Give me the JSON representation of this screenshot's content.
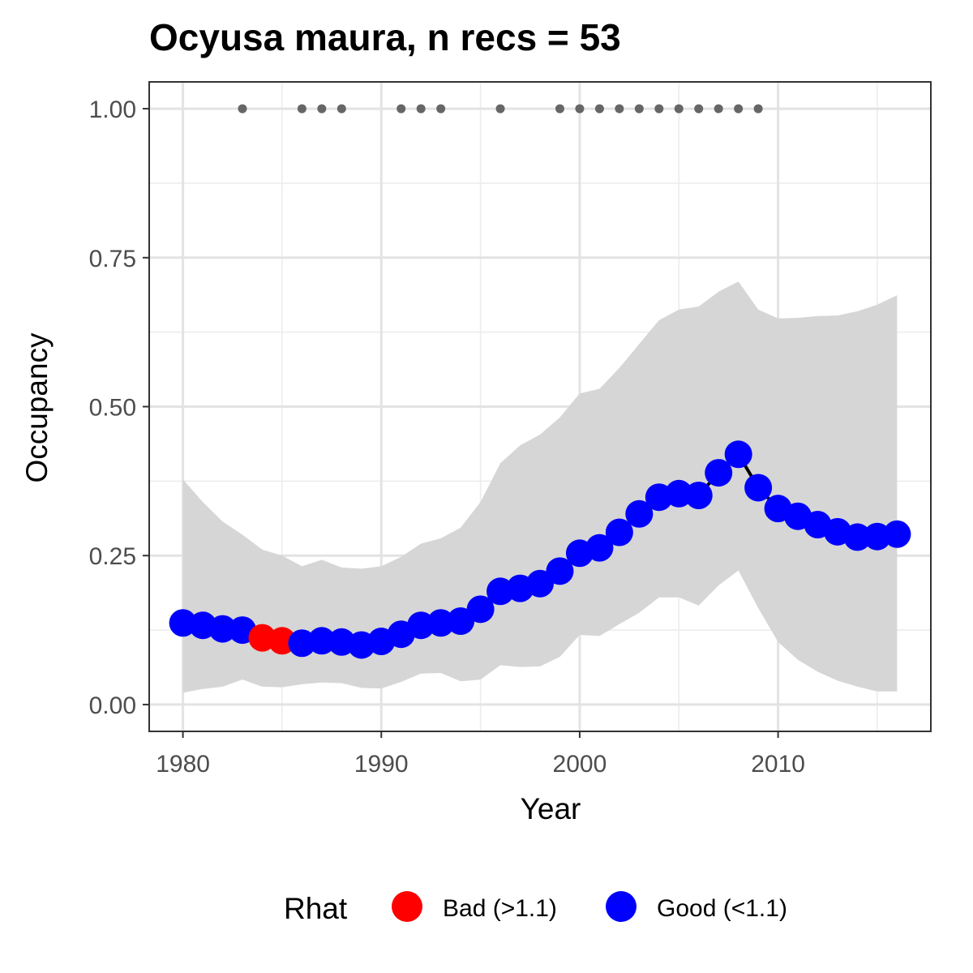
{
  "chart_data": {
    "type": "line",
    "title": "Ocyusa maura, n recs = 53",
    "xlabel": "Year",
    "ylabel": "Occupancy",
    "xlim": [
      1978.3,
      2017.7
    ],
    "ylim": [
      -0.045,
      1.045
    ],
    "x_ticks": [
      1980,
      1990,
      2000,
      2010
    ],
    "y_ticks": [
      0,
      0.25,
      0.5,
      0.75,
      1
    ],
    "y_tick_labels": [
      "0.00",
      "0.25",
      "0.50",
      "0.75",
      "1.00"
    ],
    "grid": true,
    "legend": {
      "position": "bottom",
      "title": "Rhat",
      "items": [
        {
          "label": "Bad (>1.1)",
          "color": "#ff0000"
        },
        {
          "label": "Good (<1.1)",
          "color": "#0000ff"
        }
      ]
    },
    "colors": {
      "bad": "#ff0000",
      "good": "#0000ff",
      "ribbon": "#d6d6d6",
      "records": "#666666",
      "line": "#000000"
    },
    "series": [
      {
        "x": [
          1980,
          1981,
          1982,
          1983,
          1984,
          1985,
          1986,
          1987,
          1988,
          1989,
          1990,
          1991,
          1992,
          1993,
          1994,
          1995,
          1996,
          1997,
          1998,
          1999,
          2000,
          2001,
          2002,
          2003,
          2004,
          2005,
          2006,
          2007,
          2008,
          2009,
          2010,
          2011,
          2012,
          2013,
          2014,
          2015,
          2016
        ],
        "mean": [
          0.137,
          0.133,
          0.127,
          0.125,
          0.112,
          0.107,
          0.103,
          0.107,
          0.105,
          0.1,
          0.106,
          0.118,
          0.133,
          0.137,
          0.14,
          0.16,
          0.19,
          0.195,
          0.203,
          0.224,
          0.254,
          0.263,
          0.289,
          0.32,
          0.348,
          0.354,
          0.351,
          0.389,
          0.42,
          0.364,
          0.329,
          0.316,
          0.302,
          0.29,
          0.281,
          0.282,
          0.286
        ],
        "lower": [
          0.02,
          0.026,
          0.03,
          0.042,
          0.03,
          0.029,
          0.034,
          0.037,
          0.036,
          0.028,
          0.027,
          0.038,
          0.052,
          0.053,
          0.039,
          0.042,
          0.066,
          0.063,
          0.064,
          0.08,
          0.117,
          0.115,
          0.135,
          0.154,
          0.18,
          0.18,
          0.166,
          0.2,
          0.225,
          0.162,
          0.105,
          0.075,
          0.055,
          0.04,
          0.03,
          0.022,
          0.022
        ],
        "upper": [
          0.378,
          0.34,
          0.307,
          0.285,
          0.26,
          0.25,
          0.232,
          0.243,
          0.23,
          0.228,
          0.232,
          0.248,
          0.27,
          0.279,
          0.297,
          0.34,
          0.405,
          0.435,
          0.453,
          0.482,
          0.522,
          0.53,
          0.565,
          0.605,
          0.645,
          0.663,
          0.668,
          0.693,
          0.71,
          0.663,
          0.648,
          0.649,
          0.652,
          0.653,
          0.66,
          0.671,
          0.687
        ],
        "rhat": [
          "Good",
          "Good",
          "Good",
          "Good",
          "Bad",
          "Bad",
          "Good",
          "Good",
          "Good",
          "Good",
          "Good",
          "Good",
          "Good",
          "Good",
          "Good",
          "Good",
          "Good",
          "Good",
          "Good",
          "Good",
          "Good",
          "Good",
          "Good",
          "Good",
          "Good",
          "Good",
          "Good",
          "Good",
          "Good",
          "Good",
          "Good",
          "Good",
          "Good",
          "Good",
          "Good",
          "Good",
          "Good"
        ]
      }
    ],
    "record_years": [
      1983,
      1986,
      1987,
      1988,
      1991,
      1992,
      1993,
      1996,
      1999,
      2000,
      2001,
      2002,
      2003,
      2004,
      2005,
      2006,
      2007,
      2008,
      2009
    ]
  }
}
